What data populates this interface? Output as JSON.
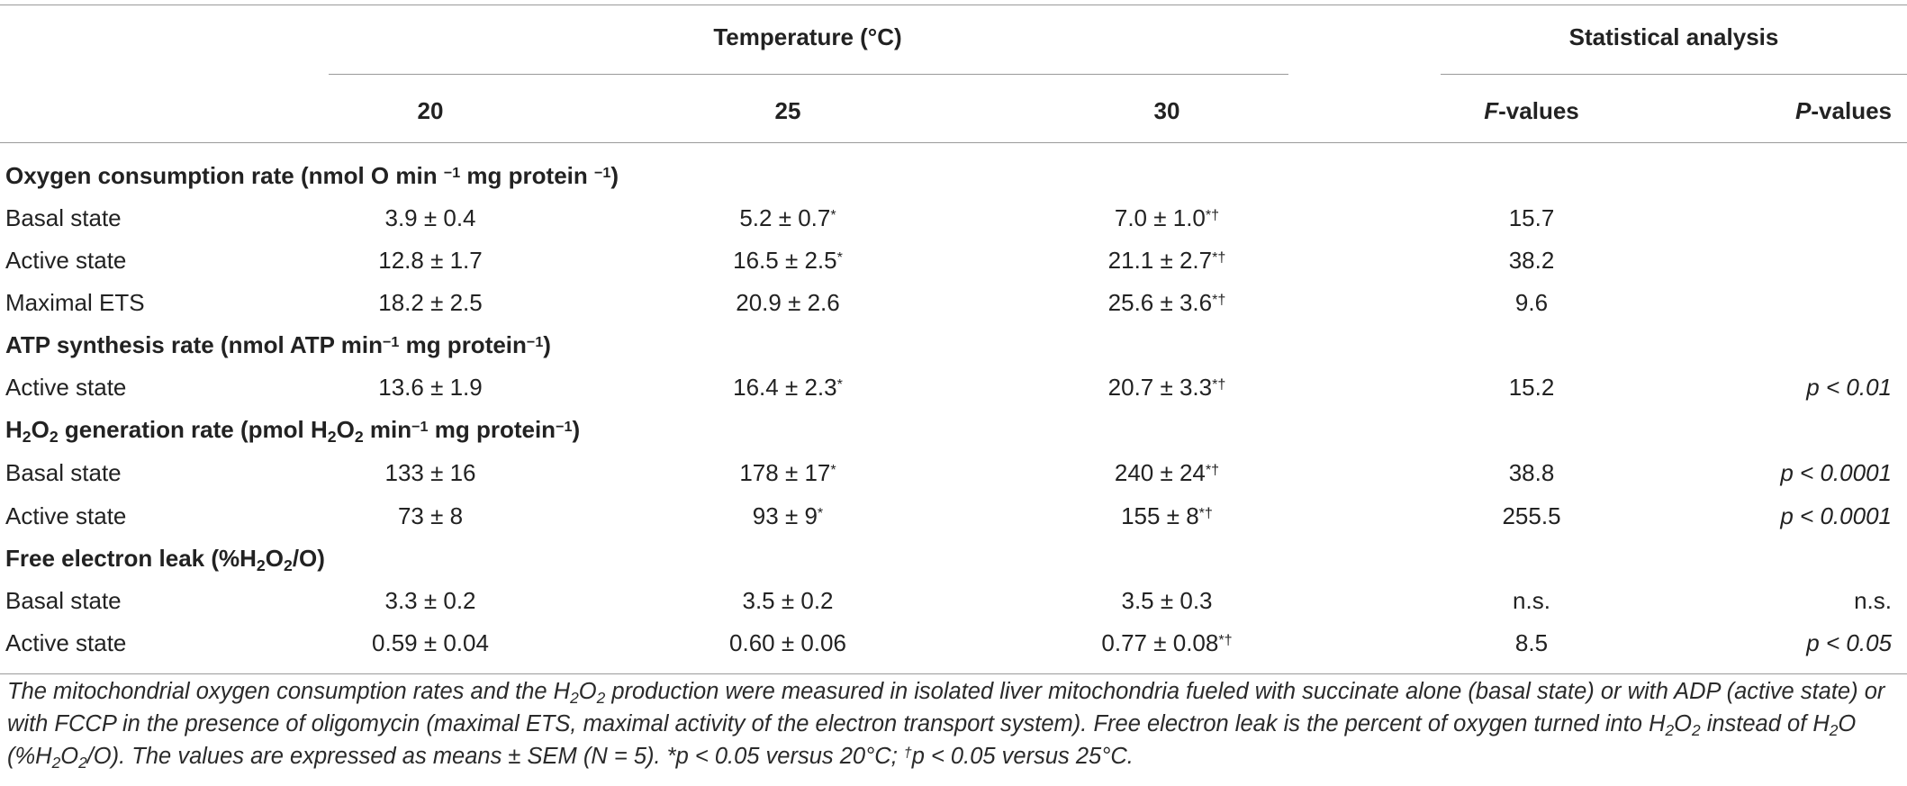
{
  "header": {
    "group_temperature": "Temperature (°C)",
    "group_stats": "Statistical analysis",
    "col_20": "20",
    "col_25": "25",
    "col_30": "30",
    "col_f_prefix": "F",
    "col_f_suffix": "-values",
    "col_p_prefix": "P",
    "col_p_suffix": "-values"
  },
  "sections": [
    {
      "title_parts": [
        "Oxygen consumption rate (nmol O min ",
        "−1",
        " mg protein ",
        "−1",
        ")"
      ],
      "rows": [
        {
          "label": "Basal state",
          "v20": "3.9 ± 0.4",
          "v25": "5.2 ± 0.7",
          "v25_sup": "*",
          "v30": "7.0 ± 1.0",
          "v30_sup": "*†",
          "f": "15.7",
          "p": ""
        },
        {
          "label": "Active state",
          "v20": "12.8 ± 1.7",
          "v25": "16.5 ± 2.5",
          "v25_sup": "*",
          "v30": "21.1 ± 2.7",
          "v30_sup": "*†",
          "f": "38.2",
          "p": ""
        },
        {
          "label": "Maximal ETS",
          "v20": "18.2 ± 2.5",
          "v25": "20.9 ± 2.6",
          "v25_sup": "",
          "v30": "25.6 ± 3.6",
          "v30_sup": "*†",
          "f": "9.6",
          "p": ""
        }
      ]
    },
    {
      "title_parts": [
        "ATP synthesis rate (nmol ATP min",
        "−1",
        " mg protein",
        "−1",
        ")"
      ],
      "rows": [
        {
          "label": "Active state",
          "v20": "13.6 ± 1.9",
          "v25": "16.4 ± 2.3",
          "v25_sup": "*",
          "v30": "20.7 ± 3.3",
          "v30_sup": "*†",
          "f": "15.2",
          "p": "p < 0.01"
        }
      ]
    },
    {
      "title_parts": [
        "H",
        "2",
        "O",
        "2",
        " generation rate (pmol H",
        "2",
        "O",
        "2",
        " min",
        "−1",
        " mg protein",
        "−1",
        ")"
      ],
      "rows": [
        {
          "label": "Basal state",
          "v20": "133 ± 16",
          "v25": "178 ± 17",
          "v25_sup": "*",
          "v30": "240 ± 24",
          "v30_sup": "*†",
          "f": "38.8",
          "p": "p < 0.0001"
        },
        {
          "label": "Active state",
          "v20": "73 ± 8",
          "v25": "93 ± 9",
          "v25_sup": "*",
          "v30": "155 ± 8",
          "v30_sup": "*†",
          "f": "255.5",
          "p": "p < 0.0001"
        }
      ]
    },
    {
      "title_parts": [
        "Free electron leak (%H",
        "2",
        "O",
        "2",
        "/O)"
      ],
      "rows": [
        {
          "label": "Basal state",
          "v20": "3.3 ± 0.2",
          "v25": "3.5 ± 0.2",
          "v25_sup": "",
          "v30": "3.5 ± 0.3",
          "v30_sup": "",
          "f": "n.s.",
          "p": "n.s."
        },
        {
          "label": "Active state",
          "v20": "0.59 ± 0.04",
          "v25": "0.60 ± 0.06",
          "v25_sup": "",
          "v30": "0.77 ± 0.08",
          "v30_sup": "*†",
          "f": "8.5",
          "p": "p < 0.05"
        }
      ]
    }
  ],
  "footnote_parts": [
    "The mitochondrial oxygen consumption rates and the H",
    "2",
    "O",
    "2",
    " production were measured in isolated liver mitochondria fueled with succinate alone (basal state) or with ADP (active state) or with FCCP in the presence of oligomycin (maximal ETS, maximal activity of the electron transport system). Free electron leak is the percent of oxygen turned into H",
    "2",
    "O",
    "2",
    " instead of H",
    "2",
    "O (%H",
    "2",
    "O",
    "2",
    "/O). The values are expressed as means ± SEM (N = 5). *p < 0.05 versus 20°C; ",
    "†",
    "p < 0.05 versus 25°C."
  ]
}
